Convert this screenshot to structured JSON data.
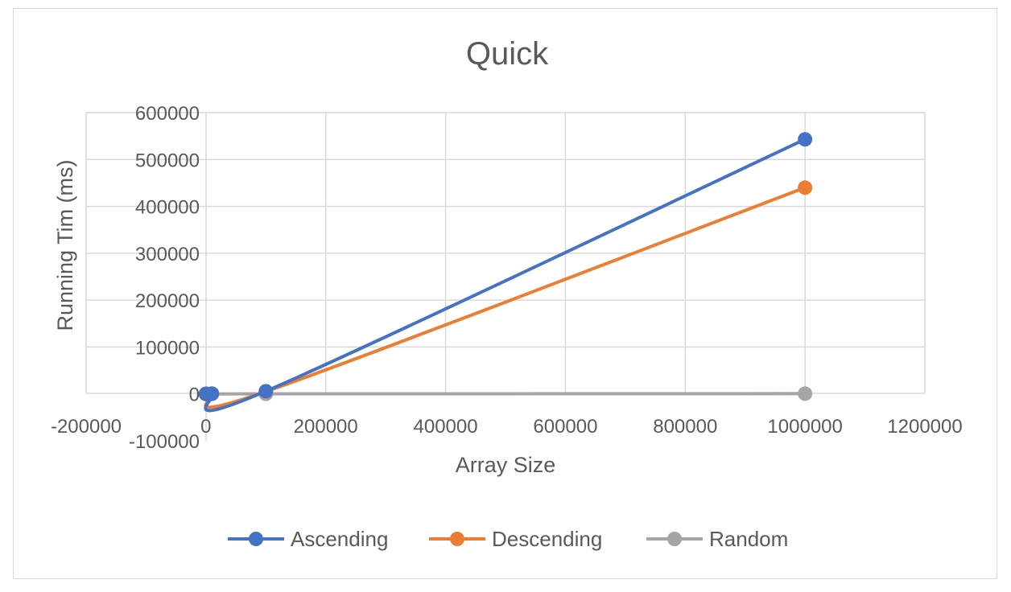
{
  "chart_data": {
    "type": "scatter",
    "title": "Quick",
    "xlabel": "Array Size",
    "ylabel": "Running Tim (ms)",
    "xlim": [
      -200000,
      1200000
    ],
    "ylim": [
      -100000,
      600000
    ],
    "x_ticks": [
      "-200000",
      "0",
      "200000",
      "400000",
      "600000",
      "800000",
      "1000000",
      "1200000"
    ],
    "y_ticks": [
      "-100000",
      "0",
      "100000",
      "200000",
      "300000",
      "400000",
      "500000",
      "600000"
    ],
    "grid": true,
    "legend_position": "bottom",
    "smooth_lines": true,
    "series": [
      {
        "name": "Ascending",
        "color": "#4472C4",
        "points": [
          [
            10,
            0
          ],
          [
            100,
            10
          ],
          [
            1000,
            150
          ],
          [
            10000,
            500
          ],
          [
            100000,
            5800
          ],
          [
            1000000,
            543000
          ]
        ]
      },
      {
        "name": "Descending",
        "color": "#ED7D31",
        "points": [
          [
            10,
            0
          ],
          [
            100,
            10
          ],
          [
            1000,
            120
          ],
          [
            10000,
            400
          ],
          [
            100000,
            5000
          ],
          [
            1000000,
            440000
          ]
        ]
      },
      {
        "name": "Random",
        "color": "#A5A5A5",
        "points": [
          [
            10,
            0
          ],
          [
            100,
            0
          ],
          [
            1000,
            1
          ],
          [
            10000,
            5
          ],
          [
            100000,
            50
          ],
          [
            1000000,
            500
          ]
        ]
      }
    ]
  }
}
